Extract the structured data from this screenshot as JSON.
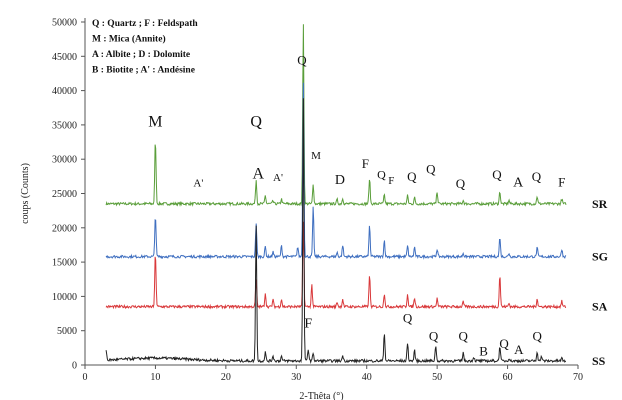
{
  "chart_data": {
    "type": "line",
    "title": "",
    "xlabel": "2-Thêta (°)",
    "ylabel": "coups (Counts)",
    "xlim": [
      0,
      70
    ],
    "ylim": [
      0,
      50000
    ],
    "x_ticks": [
      0,
      10,
      20,
      30,
      40,
      50,
      60,
      70
    ],
    "y_ticks": [
      0,
      5000,
      10000,
      15000,
      20000,
      25000,
      30000,
      35000,
      40000,
      45000,
      50000
    ],
    "grid": false,
    "legend_text": [
      "Q : Quartz ; F : Feldspath",
      "M : Mica (Annite)",
      "A : Albite ; D : Dolomite",
      "B : Biotite ; A' : Andésine"
    ],
    "series": [
      {
        "name": "SR",
        "color": "#5a9e3a",
        "baseline": 23500,
        "peaks": [
          [
            10.0,
            33000
          ],
          [
            24.3,
            27000
          ],
          [
            25.6,
            24700
          ],
          [
            26.7,
            23900
          ],
          [
            27.9,
            24200
          ],
          [
            31.0,
            50000
          ],
          [
            32.4,
            26300
          ],
          [
            35.8,
            24100
          ],
          [
            36.6,
            24300
          ],
          [
            40.4,
            27300
          ],
          [
            42.5,
            24800
          ],
          [
            45.8,
            24700
          ],
          [
            46.8,
            24400
          ],
          [
            50.0,
            25300
          ],
          [
            53.7,
            24000
          ],
          [
            58.9,
            25300
          ],
          [
            60.2,
            24000
          ],
          [
            64.2,
            24600
          ],
          [
            67.7,
            24200
          ]
        ]
      },
      {
        "name": "SG",
        "color": "#3f6fc0",
        "baseline": 15800,
        "peaks": [
          [
            10.0,
            22000
          ],
          [
            24.3,
            20700
          ],
          [
            25.6,
            17300
          ],
          [
            26.7,
            16500
          ],
          [
            27.9,
            17400
          ],
          [
            30.2,
            17200
          ],
          [
            31.0,
            41500
          ],
          [
            32.4,
            23000
          ],
          [
            35.8,
            16400
          ],
          [
            36.6,
            17500
          ],
          [
            40.4,
            20400
          ],
          [
            42.5,
            18200
          ],
          [
            45.8,
            17400
          ],
          [
            46.8,
            17200
          ],
          [
            50.0,
            16900
          ],
          [
            53.7,
            16300
          ],
          [
            58.9,
            18700
          ],
          [
            60.2,
            16300
          ],
          [
            64.2,
            17100
          ],
          [
            67.7,
            16900
          ]
        ]
      },
      {
        "name": "SA",
        "color": "#d9383a",
        "baseline": 8500,
        "peaks": [
          [
            10.0,
            16500
          ],
          [
            24.3,
            12500
          ],
          [
            25.6,
            10500
          ],
          [
            26.7,
            9500
          ],
          [
            27.9,
            9600
          ],
          [
            31.0,
            21000
          ],
          [
            32.2,
            11700
          ],
          [
            35.8,
            9200
          ],
          [
            36.6,
            9600
          ],
          [
            40.4,
            13200
          ],
          [
            42.5,
            10500
          ],
          [
            45.8,
            10400
          ],
          [
            46.8,
            9800
          ],
          [
            50.0,
            9700
          ],
          [
            53.7,
            9200
          ],
          [
            58.9,
            13200
          ],
          [
            60.2,
            9000
          ],
          [
            64.2,
            9700
          ],
          [
            67.7,
            9300
          ]
        ]
      },
      {
        "name": "SS",
        "color": "#222222",
        "baseline": 600,
        "peaks": [
          [
            3.0,
            2000
          ],
          [
            24.3,
            20500
          ],
          [
            25.6,
            1900
          ],
          [
            26.7,
            1400
          ],
          [
            27.9,
            1300
          ],
          [
            31.0,
            39000
          ],
          [
            31.7,
            2400
          ],
          [
            32.4,
            1800
          ],
          [
            36.6,
            1400
          ],
          [
            42.5,
            4800
          ],
          [
            45.8,
            3300
          ],
          [
            46.8,
            2100
          ],
          [
            49.8,
            2900
          ],
          [
            53.7,
            1800
          ],
          [
            55.2,
            1200
          ],
          [
            58.9,
            2800
          ],
          [
            60.2,
            1000
          ],
          [
            64.2,
            2000
          ],
          [
            64.8,
            1300
          ],
          [
            67.7,
            1000
          ]
        ]
      }
    ],
    "annotations": [
      {
        "text": "M",
        "x": 10.0,
        "y": 34800,
        "size": 16
      },
      {
        "text": "Q",
        "x": 24.3,
        "y": 34800,
        "size": 16
      },
      {
        "text": "A",
        "x": 24.6,
        "y": 27200,
        "size": 16
      },
      {
        "text": "A'",
        "x": 16.1,
        "y": 26000,
        "size": 11
      },
      {
        "text": "A'",
        "x": 27.4,
        "y": 26800,
        "size": 11
      },
      {
        "text": "Q",
        "x": 30.8,
        "y": 43800,
        "size": 13
      },
      {
        "text": "M",
        "x": 32.8,
        "y": 30000,
        "size": 11
      },
      {
        "text": "D",
        "x": 36.2,
        "y": 26400,
        "size": 14
      },
      {
        "text": "F",
        "x": 39.8,
        "y": 28700,
        "size": 13
      },
      {
        "text": "Q",
        "x": 42.1,
        "y": 27200,
        "size": 12
      },
      {
        "text": "F",
        "x": 43.5,
        "y": 26400,
        "size": 11
      },
      {
        "text": "Q",
        "x": 46.4,
        "y": 26800,
        "size": 13
      },
      {
        "text": "Q",
        "x": 49.1,
        "y": 27900,
        "size": 13
      },
      {
        "text": "Q",
        "x": 53.3,
        "y": 25800,
        "size": 13
      },
      {
        "text": "Q",
        "x": 58.5,
        "y": 27100,
        "size": 13
      },
      {
        "text": "A",
        "x": 61.5,
        "y": 26000,
        "size": 14
      },
      {
        "text": "Q",
        "x": 64.1,
        "y": 26800,
        "size": 13
      },
      {
        "text": "F",
        "x": 67.7,
        "y": 26000,
        "size": 13
      },
      {
        "text": "F",
        "x": 31.7,
        "y": 5500,
        "size": 14
      },
      {
        "text": "Q",
        "x": 45.8,
        "y": 6200,
        "size": 13
      },
      {
        "text": "Q",
        "x": 49.5,
        "y": 3600,
        "size": 13
      },
      {
        "text": "Q",
        "x": 53.7,
        "y": 3600,
        "size": 13
      },
      {
        "text": "B",
        "x": 56.6,
        "y": 1400,
        "size": 13
      },
      {
        "text": "Q",
        "x": 59.5,
        "y": 2500,
        "size": 13
      },
      {
        "text": "A",
        "x": 61.6,
        "y": 1600,
        "size": 13
      },
      {
        "text": "Q",
        "x": 64.2,
        "y": 3600,
        "size": 13
      }
    ]
  }
}
